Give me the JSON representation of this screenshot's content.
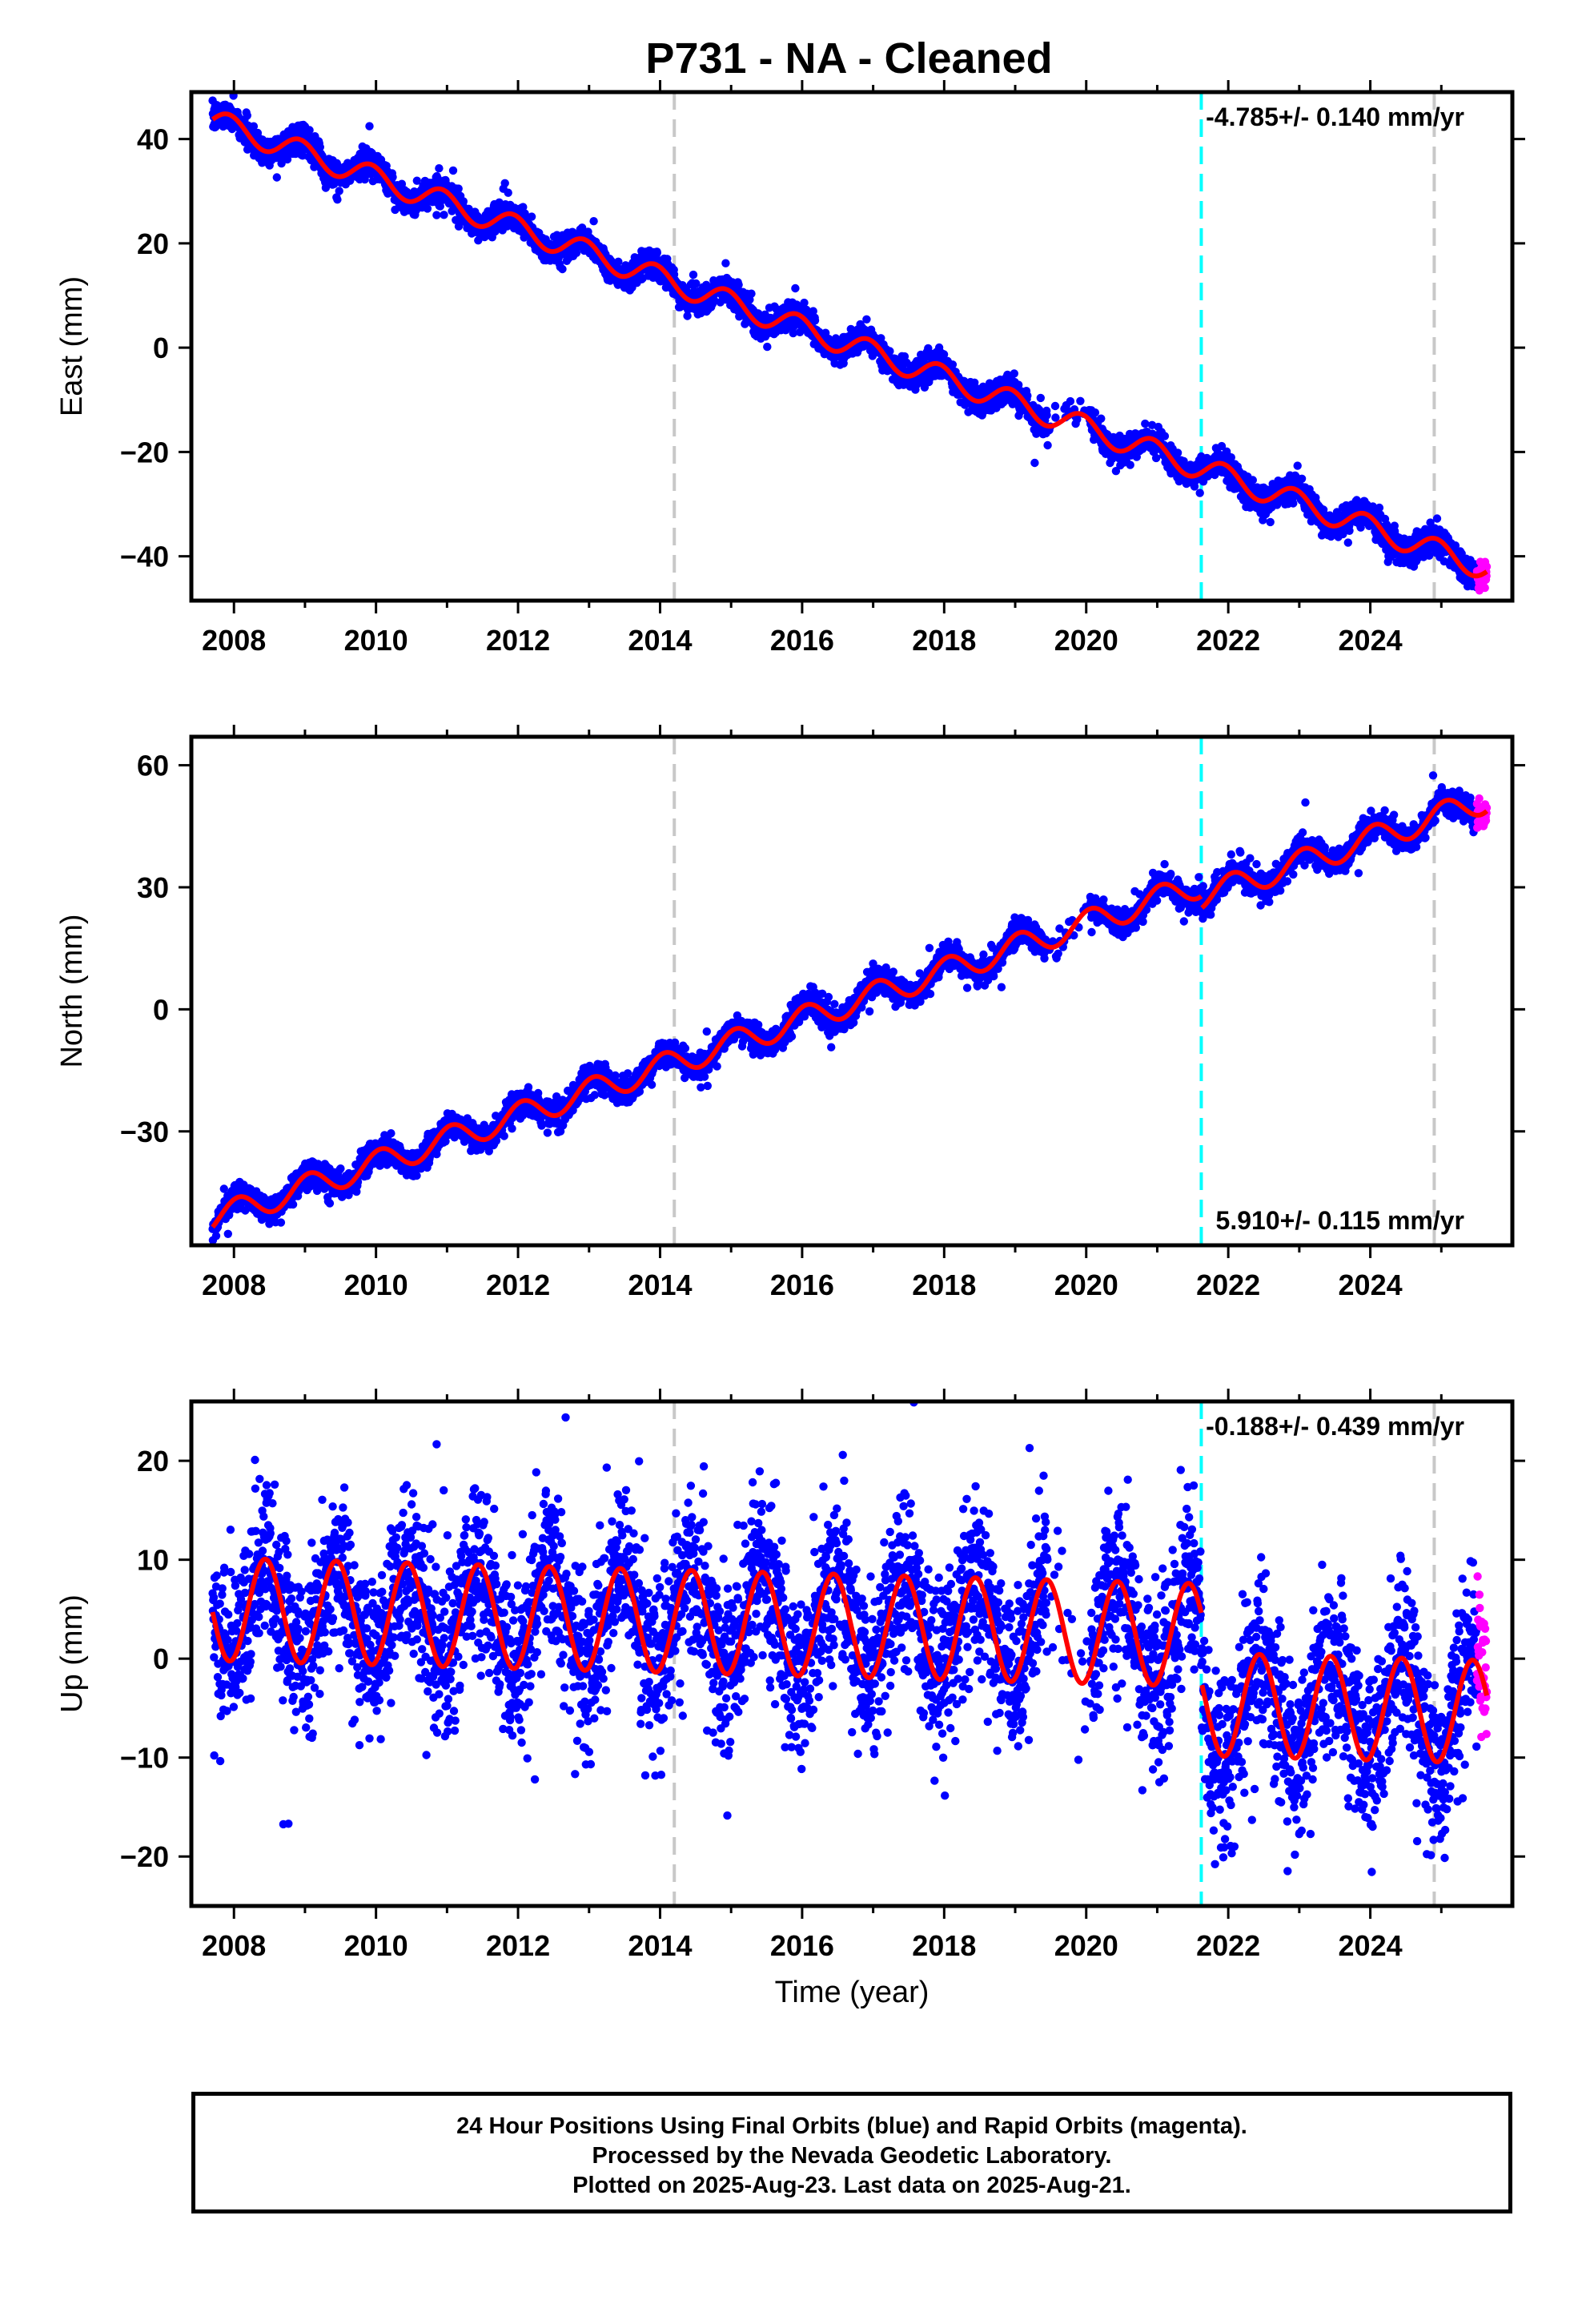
{
  "title": "P731  - NA - Cleaned",
  "colors": {
    "final_orbits": "#0000ff",
    "rapid_orbits": "#ff00ff",
    "model_fit": "#ff0000",
    "equipment_change": "#c8c8c8",
    "earthquake": "#00ffff"
  },
  "footer": {
    "line1": "24 Hour Positions Using Final Orbits (blue) and Rapid Orbits (magenta).",
    "line2": "Processed by the Nevada Geodetic Laboratory.",
    "line3": "Plotted on 2025-Aug-23. Last data on 2025-Aug-21."
  },
  "chart_data": [
    {
      "type": "scatter",
      "name": "east",
      "ylabel": "East (mm)",
      "xlabel": "",
      "xlim": [
        2007.4,
        2026.0
      ],
      "ylim": [
        -48.5,
        49
      ],
      "xticks": [
        2008,
        2010,
        2012,
        2014,
        2016,
        2018,
        2020,
        2022,
        2024
      ],
      "yticks": [
        -40,
        -20,
        0,
        20,
        40
      ],
      "rate_text": "-4.785+/- 0.140 mm/yr",
      "rate_position": "top-right",
      "model": {
        "t0": 2007.7,
        "y0": 43.5,
        "slope": -4.785,
        "annual_amplitude": 2.3,
        "annual_phase": 2.0,
        "scatter": 1.3
      },
      "steps": [],
      "vlines": [
        {
          "x": 2014.2,
          "kind": "equipment"
        },
        {
          "x": 2021.62,
          "kind": "earthquake"
        },
        {
          "x": 2024.9,
          "kind": "equipment"
        }
      ]
    },
    {
      "type": "scatter",
      "name": "north",
      "ylabel": "North (mm)",
      "xlabel": "",
      "xlim": [
        2007.4,
        2026.0
      ],
      "ylim": [
        -58,
        67
      ],
      "xticks": [
        2008,
        2010,
        2012,
        2014,
        2016,
        2018,
        2020,
        2022,
        2024
      ],
      "yticks": [
        -30,
        0,
        30,
        60
      ],
      "rate_text": "5.910+/- 0.115 mm/yr",
      "rate_position": "bottom-right",
      "model": {
        "t0": 2007.7,
        "y0": -51.5,
        "slope": 5.91,
        "annual_amplitude": 3.2,
        "annual_phase": 1.2,
        "scatter": 1.6
      },
      "steps": [
        {
          "x": 2021.62,
          "dy": -3
        }
      ],
      "vlines": [
        {
          "x": 2014.2,
          "kind": "equipment"
        },
        {
          "x": 2021.62,
          "kind": "earthquake"
        },
        {
          "x": 2024.9,
          "kind": "equipment"
        }
      ]
    },
    {
      "type": "scatter",
      "name": "up",
      "ylabel": "Up (mm)",
      "xlabel": "Time (year)",
      "xlim": [
        2007.4,
        2026.0
      ],
      "ylim": [
        -25,
        26
      ],
      "xticks": [
        2008,
        2010,
        2012,
        2014,
        2016,
        2018,
        2020,
        2022,
        2024
      ],
      "yticks": [
        -20,
        -10,
        0,
        10,
        20
      ],
      "rate_text": "-0.188+/- 0.439 mm/yr",
      "rate_position": "top-right",
      "model": {
        "t0": 2007.7,
        "y0": 5,
        "slope": -0.188,
        "annual_amplitude": 5.2,
        "annual_phase": -1.2,
        "scatter": 4.2
      },
      "steps": [
        {
          "x": 2021.62,
          "dy": -7
        }
      ],
      "vlines": [
        {
          "x": 2014.2,
          "kind": "equipment"
        },
        {
          "x": 2021.62,
          "kind": "earthquake"
        },
        {
          "x": 2024.9,
          "kind": "equipment"
        }
      ]
    }
  ]
}
